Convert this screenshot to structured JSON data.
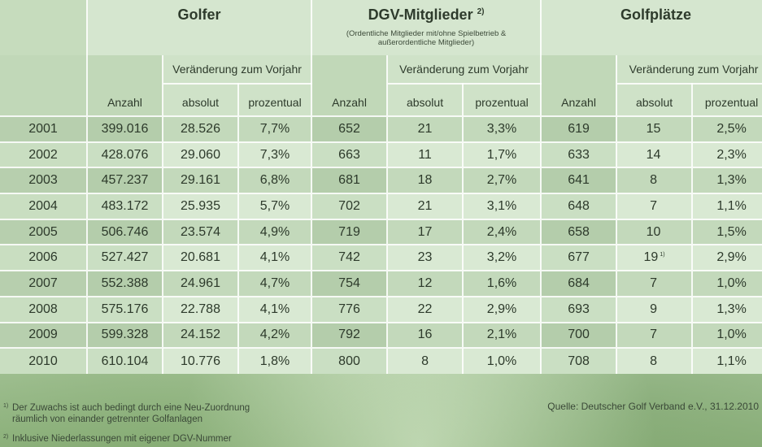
{
  "groups": {
    "golfer": {
      "title": "Golfer"
    },
    "members": {
      "title": "DGV-Mitglieder",
      "marker": "2)",
      "subtitle_line1": "(Ordentliche Mitglieder mit/ohne Spielbetrieb &",
      "subtitle_line2": "außerordentliche Mitglieder)"
    },
    "courses": {
      "title": "Golfplätze"
    }
  },
  "change_header": "Veränderung zum Vorjahr",
  "columns": {
    "count": "Anzahl",
    "absolute": "absolut",
    "percent": "prozentual"
  },
  "rows": [
    {
      "year": "2001",
      "g_count": "399.016",
      "g_abs": "28.526",
      "g_pct": "7,7%",
      "m_count": "652",
      "m_abs": "21",
      "m_pct": "3,3%",
      "c_count": "619",
      "c_abs": "15",
      "c_note": "",
      "c_pct": "2,5%"
    },
    {
      "year": "2002",
      "g_count": "428.076",
      "g_abs": "29.060",
      "g_pct": "7,3%",
      "m_count": "663",
      "m_abs": "11",
      "m_pct": "1,7%",
      "c_count": "633",
      "c_abs": "14",
      "c_note": "",
      "c_pct": "2,3%"
    },
    {
      "year": "2003",
      "g_count": "457.237",
      "g_abs": "29.161",
      "g_pct": "6,8%",
      "m_count": "681",
      "m_abs": "18",
      "m_pct": "2,7%",
      "c_count": "641",
      "c_abs": "8",
      "c_note": "",
      "c_pct": "1,3%"
    },
    {
      "year": "2004",
      "g_count": "483.172",
      "g_abs": "25.935",
      "g_pct": "5,7%",
      "m_count": "702",
      "m_abs": "21",
      "m_pct": "3,1%",
      "c_count": "648",
      "c_abs": "7",
      "c_note": "",
      "c_pct": "1,1%"
    },
    {
      "year": "2005",
      "g_count": "506.746",
      "g_abs": "23.574",
      "g_pct": "4,9%",
      "m_count": "719",
      "m_abs": "17",
      "m_pct": "2,4%",
      "c_count": "658",
      "c_abs": "10",
      "c_note": "",
      "c_pct": "1,5%"
    },
    {
      "year": "2006",
      "g_count": "527.427",
      "g_abs": "20.681",
      "g_pct": "4,1%",
      "m_count": "742",
      "m_abs": "23",
      "m_pct": "3,2%",
      "c_count": "677",
      "c_abs": "19",
      "c_note": "1)",
      "c_pct": "2,9%"
    },
    {
      "year": "2007",
      "g_count": "552.388",
      "g_abs": "24.961",
      "g_pct": "4,7%",
      "m_count": "754",
      "m_abs": "12",
      "m_pct": "1,6%",
      "c_count": "684",
      "c_abs": "7",
      "c_note": "",
      "c_pct": "1,0%"
    },
    {
      "year": "2008",
      "g_count": "575.176",
      "g_abs": "22.788",
      "g_pct": "4,1%",
      "m_count": "776",
      "m_abs": "22",
      "m_pct": "2,9%",
      "c_count": "693",
      "c_abs": "9",
      "c_note": "",
      "c_pct": "1,3%"
    },
    {
      "year": "2009",
      "g_count": "599.328",
      "g_abs": "24.152",
      "g_pct": "4,2%",
      "m_count": "792",
      "m_abs": "16",
      "m_pct": "2,1%",
      "c_count": "700",
      "c_abs": "7",
      "c_note": "",
      "c_pct": "1,0%"
    },
    {
      "year": "2010",
      "g_count": "610.104",
      "g_abs": "10.776",
      "g_pct": "1,8%",
      "m_count": "800",
      "m_abs": "8",
      "m_pct": "1,0%",
      "c_count": "708",
      "c_abs": "8",
      "c_note": "",
      "c_pct": "1,1%"
    }
  ],
  "footnotes": [
    {
      "marker": "1)",
      "line1": "Der Zuwachs ist auch bedingt durch eine Neu-Zuordnung",
      "line2": "räumlich von einander getrennter Golfanlagen"
    },
    {
      "marker": "2)",
      "line1": "Inklusive Niederlassungen mit eigener DGV-Nummer"
    }
  ],
  "source": "Quelle: Deutscher Golf Verband e.V., 31.12.2010",
  "colors": {
    "header_bg": "#d5e6cf",
    "row_dark": "#c3d9bb",
    "row_light": "#d9e9d3",
    "divider": "#ffffff",
    "text": "#2d3a2b"
  }
}
